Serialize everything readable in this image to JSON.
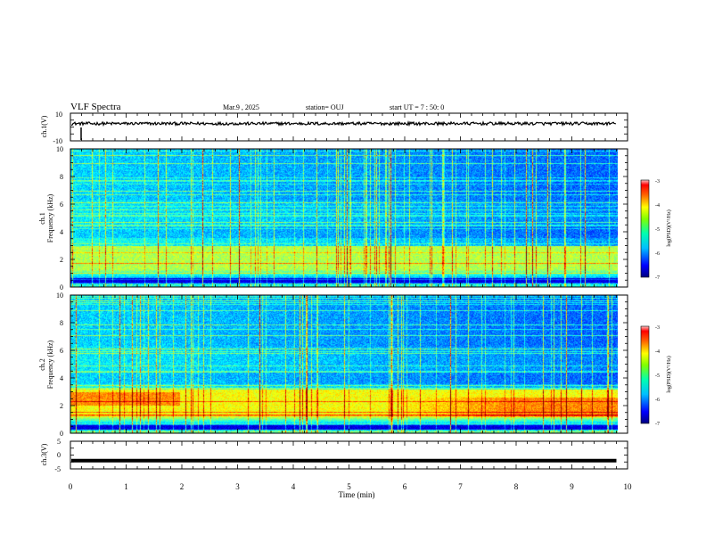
{
  "header": {
    "title": "VLF Spectra",
    "date": "Mar.9  , 2025",
    "station": "station= OUJ",
    "start_time": "start  UT  =   7 : 50: 0"
  },
  "chart_data": [
    {
      "type": "line",
      "ylabel": "ch.1(V)",
      "ylim": [
        -10,
        10
      ],
      "y_ticks": [
        "10",
        "-10"
      ],
      "x": [
        0,
        10
      ],
      "baseline": 2.5,
      "series_color": "#000000"
    },
    {
      "type": "heatmap",
      "panel": "ch.1",
      "ylabel": "Frequency  (kHz)",
      "ylim": [
        0,
        10
      ],
      "y_ticks": [
        "0",
        "2",
        "4",
        "6",
        "8",
        "10"
      ],
      "xlim": [
        0,
        9.8
      ],
      "colorbar": {
        "label": "log(PSD)(V²/Hz)",
        "range": [
          -7,
          -3
        ],
        "ticks": [
          "-3",
          "-4",
          "-5",
          "-6",
          "-7"
        ]
      },
      "band_kHz": [
        0.8,
        3.0
      ],
      "dark_band_kHz": [
        0.3,
        0.7
      ]
    },
    {
      "type": "heatmap",
      "panel": "ch.2",
      "ylabel": "Frequency  (kHz)",
      "ylim": [
        0,
        10
      ],
      "y_ticks": [
        "0",
        "2",
        "4",
        "6",
        "8",
        "10"
      ],
      "xlim": [
        0,
        9.8
      ],
      "colorbar": {
        "label": "log(PSD)(V²/Hz)",
        "range": [
          -7,
          -3
        ],
        "ticks": [
          "-3",
          "-4",
          "-5",
          "-6",
          "-7"
        ]
      },
      "band_kHz": [
        0.8,
        3.2
      ],
      "dark_band_kHz": [
        0.3,
        0.7
      ]
    },
    {
      "type": "line",
      "ylabel": "ch.3(V)",
      "ylim": [
        -5,
        5
      ],
      "y_ticks": [
        "5",
        "0",
        "-5"
      ],
      "x": [
        0,
        9.8
      ],
      "y": [
        -2,
        -2
      ],
      "series_color": "#000000"
    }
  ],
  "xaxis": {
    "label": "Time  (min)",
    "xlim": [
      0,
      10
    ],
    "ticks": [
      "0",
      "1",
      "2",
      "3",
      "4",
      "5",
      "6",
      "7",
      "8",
      "9",
      "10"
    ]
  },
  "colors": {
    "colormap": [
      "#00007f",
      "#0000ff",
      "#007fff",
      "#00ffff",
      "#7fff7f",
      "#ffff00",
      "#ff7f00",
      "#ff0000",
      "#7f0000"
    ]
  }
}
